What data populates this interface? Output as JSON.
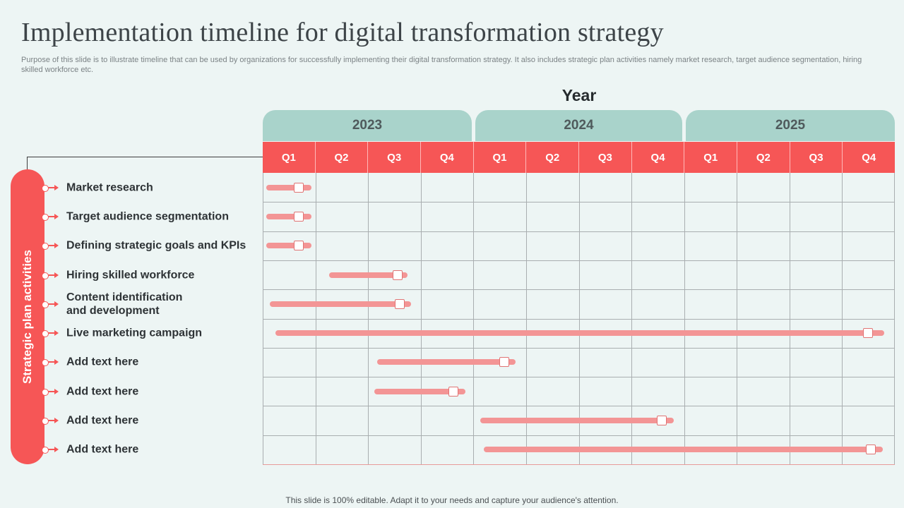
{
  "title": "Implementation timeline for digital transformation strategy",
  "subtitle": "Purpose of this slide is to illustrate timeline that can be used by organizations for successfully implementing their digital transformation strategy. It also includes strategic plan activities namely market research, target audience segmentation, hiring skilled workforce etc.",
  "year_heading": "Year",
  "years": [
    "2023",
    "2024",
    "2025"
  ],
  "quarters": [
    "Q1",
    "Q2",
    "Q3",
    "Q4",
    "Q1",
    "Q2",
    "Q3",
    "Q4",
    "Q1",
    "Q2",
    "Q3",
    "Q4"
  ],
  "side_label": "Strategic plan activities",
  "activities": [
    {
      "label": "Market research",
      "start_q": 0.07,
      "end_q": 0.93,
      "marker_q": 0.68
    },
    {
      "label": "Target audience segmentation",
      "start_q": 0.07,
      "end_q": 0.93,
      "marker_q": 0.68
    },
    {
      "label": "Defining strategic goals and KPIs",
      "start_q": 0.07,
      "end_q": 0.93,
      "marker_q": 0.68
    },
    {
      "label": "Hiring skilled workforce",
      "start_q": 1.26,
      "end_q": 2.75,
      "marker_q": 2.56
    },
    {
      "label": "Content identification\nand development",
      "start_q": 0.14,
      "end_q": 2.82,
      "marker_q": 2.6
    },
    {
      "label": "Live marketing campaign",
      "start_q": 0.24,
      "end_q": 11.8,
      "marker_q": 11.49
    },
    {
      "label": "Add text here",
      "start_q": 2.17,
      "end_q": 4.8,
      "marker_q": 4.58
    },
    {
      "label": "Add text here",
      "start_q": 2.12,
      "end_q": 3.85,
      "marker_q": 3.62
    },
    {
      "label": "Add text here",
      "start_q": 4.13,
      "end_q": 7.8,
      "marker_q": 7.58
    },
    {
      "label": "Add text here",
      "start_q": 4.19,
      "end_q": 11.77,
      "marker_q": 11.54
    }
  ],
  "footer": "This slide is 100% editable. Adapt it to your needs and capture your audience's attention.",
  "colors": {
    "accent": "#f65656",
    "bar": "#f39595",
    "year_header": "#a9d3cb",
    "background": "#edf5f4"
  }
}
